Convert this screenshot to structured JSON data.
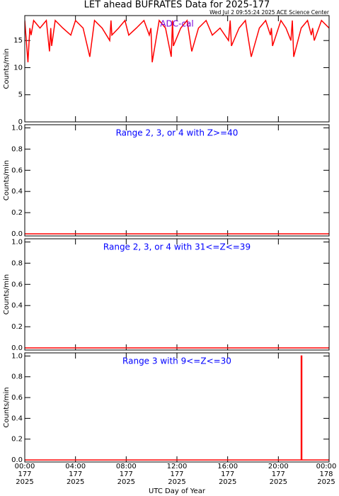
{
  "title": "LET ahead BUFRATES Data for 2025-177",
  "subtitle": "Wed Jul  2 09:55:24 2025 ACE Science Center",
  "xlabel": "UTC Day of Year",
  "chart_data": [
    {
      "type": "line",
      "label": "ADC-cal",
      "label_color": "#7a00d8",
      "ylabel": "Counts/min",
      "color": "#ff0000",
      "ylim": [
        0,
        19.6
      ],
      "yticks": [
        0,
        5,
        10,
        15
      ],
      "x": [
        0,
        0.25,
        0.4,
        0.5,
        0.7,
        1.2,
        1.7,
        1.95,
        2.05,
        2.12,
        2.4,
        3.0,
        3.63,
        4.0,
        4.6,
        5.13,
        5.5,
        6.1,
        6.7,
        6.8,
        6.87,
        7.4,
        7.9,
        8.2,
        8.8,
        9.4,
        9.82,
        9.95,
        10.05,
        10.6,
        11.1,
        11.55,
        11.65,
        11.72,
        12.3,
        12.8,
        13.17,
        13.7,
        14.3,
        14.79,
        15.4,
        16.07,
        16.2,
        16.3,
        16.9,
        17.4,
        17.86,
        18.5,
        19.0,
        19.37,
        19.45,
        19.54,
        20.2,
        20.6,
        20.99,
        21.1,
        21.21,
        21.8,
        22.3,
        22.6,
        22.7,
        22.83,
        23.4,
        24
      ],
      "values": [
        18.7,
        11,
        17.3,
        16,
        18.7,
        17.3,
        18.7,
        13,
        17.3,
        14,
        18.7,
        17.3,
        16,
        18.7,
        17.3,
        12,
        18.7,
        17.3,
        15,
        18.7,
        16,
        17.3,
        18.7,
        16,
        17.3,
        18.7,
        16,
        17.3,
        11,
        18.7,
        17.3,
        12,
        18.7,
        14,
        17.3,
        18.7,
        13,
        17.3,
        18.7,
        16,
        17.3,
        15,
        18.7,
        14,
        17.3,
        18.7,
        12,
        17.3,
        18.7,
        16,
        17.3,
        14,
        18.7,
        17.3,
        15,
        18.7,
        12,
        17.3,
        18.7,
        16,
        17.3,
        15,
        18.7,
        17.3
      ]
    },
    {
      "type": "line",
      "label": "Range 2, 3, or 4 with Z>=40",
      "label_color": "#0000ff",
      "ylabel": "Counts/min",
      "color": "#ff0000",
      "ylim": [
        -0.02,
        1.03
      ],
      "yticks": [
        {
          "value": 0,
          "label": "0.0"
        },
        0.2,
        0.4,
        0.6,
        0.8,
        {
          "value": 1,
          "label": "1.0"
        }
      ],
      "x": [
        0,
        24
      ],
      "values": [
        0,
        0
      ]
    },
    {
      "type": "line",
      "label": "Range 2, 3, or 4 with 31<=Z<=39",
      "label_color": "#0000ff",
      "ylabel": "Counts/min",
      "color": "#ff0000",
      "ylim": [
        -0.02,
        1.03
      ],
      "yticks": [
        {
          "value": 0,
          "label": "0.0"
        },
        0.2,
        0.4,
        0.6,
        0.8,
        {
          "value": 1,
          "label": "1.0"
        }
      ],
      "x": [
        0,
        24
      ],
      "values": [
        0,
        0
      ]
    },
    {
      "type": "line",
      "label": "Range 3 with 9<=Z<=30",
      "label_color": "#0000ff",
      "ylabel": "Counts/min",
      "color": "#ff0000",
      "ylim": [
        -0.02,
        1.03
      ],
      "yticks": [
        {
          "value": 0,
          "label": "0.0"
        },
        0.2,
        0.4,
        0.6,
        0.8,
        {
          "value": 1,
          "label": "1.0"
        }
      ],
      "x": [
        0,
        21.8,
        21.8,
        21.85,
        21.85,
        24
      ],
      "values": [
        0,
        0,
        1,
        1,
        0,
        0
      ],
      "xlim": [
        0,
        24
      ],
      "xticks": [
        {
          "value": 0,
          "label": [
            "00:00",
            "177",
            "2025"
          ]
        },
        {
          "value": 4,
          "label": [
            "04:00",
            "177",
            "2025"
          ]
        },
        {
          "value": 8,
          "label": [
            "08:00",
            "177",
            "2025"
          ]
        },
        {
          "value": 12,
          "label": [
            "12:00",
            "177",
            "2025"
          ]
        },
        {
          "value": 16,
          "label": [
            "16:00",
            "177",
            "2025"
          ]
        },
        {
          "value": 20,
          "label": [
            "20:00",
            "177",
            "2025"
          ]
        },
        {
          "value": 24,
          "label": [
            "00:00",
            "178",
            "2025"
          ]
        }
      ]
    }
  ]
}
